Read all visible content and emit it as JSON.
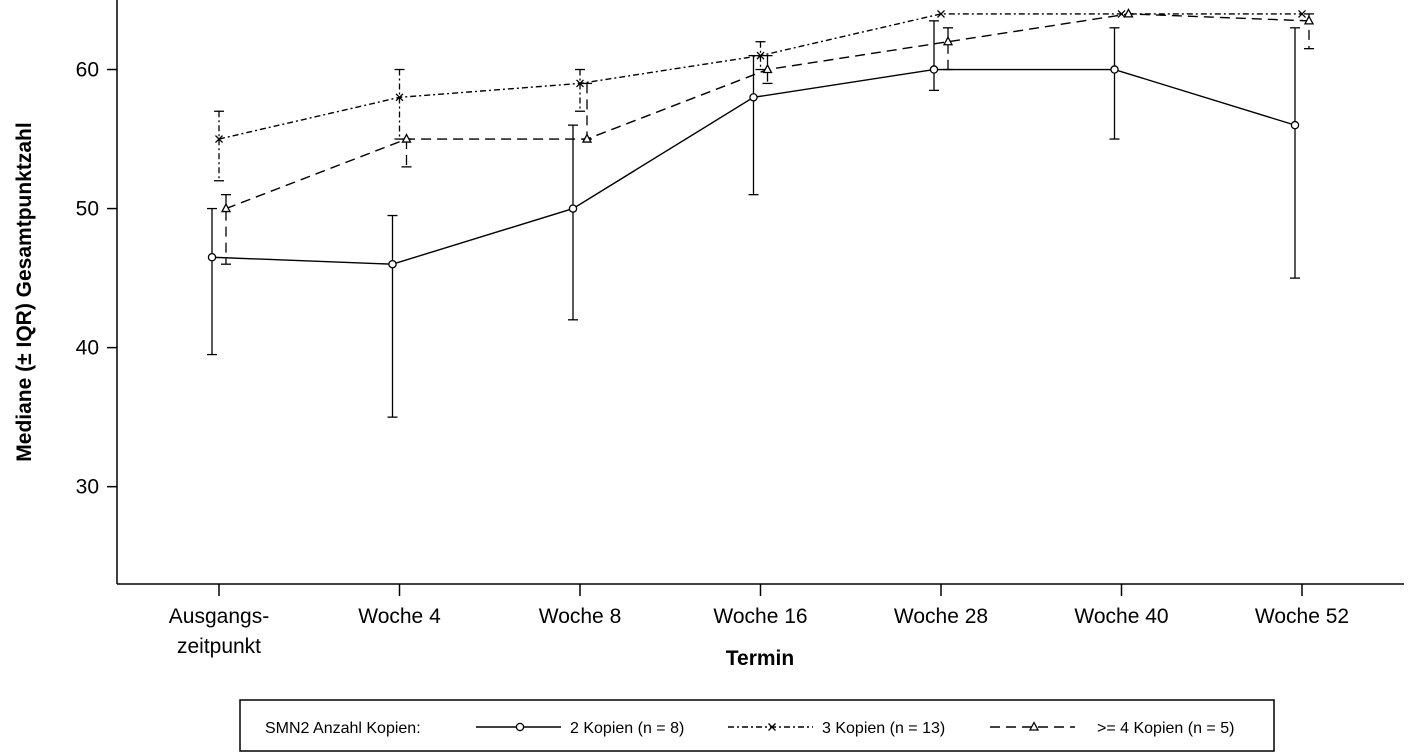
{
  "chart_data": {
    "type": "line",
    "xlabel": "Termin",
    "ylabel": "Mediane (± IQR) Gesamtpunktzahl",
    "ylim": [
      23,
      65
    ],
    "yticks": [
      30,
      40,
      50,
      60
    ],
    "categories": [
      [
        "Ausgangs-",
        "zeitpunkt"
      ],
      [
        "Woche 4"
      ],
      [
        "Woche 8"
      ],
      [
        "Woche 16"
      ],
      [
        "Woche 28"
      ],
      [
        "Woche 40"
      ],
      [
        "Woche 52"
      ]
    ],
    "legend": {
      "title": "SMN2 Anzahl Kopien:",
      "placement": "bottom"
    },
    "series": [
      {
        "name": "2 Kopien (n = 8)",
        "marker": "circle",
        "dash": "solid",
        "median": [
          46.5,
          46,
          50,
          58,
          60,
          60,
          56
        ],
        "q1": [
          39.5,
          35,
          42,
          51,
          58.5,
          55,
          45
        ],
        "q3": [
          50,
          49.5,
          56,
          61,
          63.5,
          63,
          63
        ]
      },
      {
        "name": "3 Kopien (n = 13)",
        "marker": "x",
        "dash": "dashdot",
        "median": [
          55,
          58,
          59,
          61,
          64,
          64,
          64
        ],
        "q1": [
          52,
          55,
          57,
          60,
          64,
          64,
          64
        ],
        "q3": [
          57,
          60,
          60,
          62,
          64,
          64,
          64
        ]
      },
      {
        "name": ">= 4 Kopien (n = 5)",
        "marker": "triangle",
        "dash": "dashed",
        "median": [
          50,
          55,
          55,
          60,
          62,
          64,
          63.5
        ],
        "q1": [
          46,
          53,
          55,
          59,
          60,
          64,
          61.5
        ],
        "q3": [
          51,
          55,
          59,
          61,
          63,
          64,
          64
        ]
      }
    ]
  }
}
